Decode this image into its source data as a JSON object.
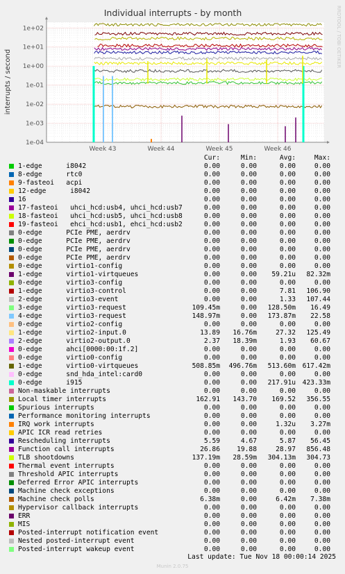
{
  "chart_data": {
    "type": "line",
    "title": "Individual interrupts - by month",
    "ylabel": "interrupts / second",
    "yscale": "log",
    "ylim": [
      0.0001,
      200
    ],
    "yticks": [
      "1e+02",
      "1e+01",
      "1e+00",
      "1e-01",
      "1e-02",
      "1e-03",
      "1e-04"
    ],
    "xticks": [
      "Week 43",
      "Week 44",
      "Week 45",
      "Week 46"
    ],
    "watermark": "RRDTOOL / TOBI OETIKER",
    "series_lines": [
      {
        "color": "#8b8b00",
        "level": 150,
        "start": 0.04
      },
      {
        "color": "#7b0000",
        "level": 50,
        "start": 0.15
      },
      {
        "color": "#b3b300",
        "level": 28,
        "start": 0.14
      },
      {
        "color": "#b40000",
        "level": 12,
        "start": 0.55
      },
      {
        "color": "#8b008b",
        "level": 8,
        "start": 0.07
      },
      {
        "color": "#1a1aa0",
        "level": 5.2,
        "start": 0.07
      },
      {
        "color": "#aaaaaa",
        "level": 2.5,
        "start": 0.07
      },
      {
        "color": "#e8e800",
        "level": 1.4,
        "start": 0.07
      },
      {
        "color": "#555555",
        "level": 0.55,
        "start": 0.07
      },
      {
        "color": "#30c030",
        "level": 0.13,
        "start": 0.07
      },
      {
        "color": "#ccff33",
        "level": 0.2,
        "start": 0.07
      },
      {
        "color": "#8b5a00",
        "level": 0.0075,
        "start": 0.07
      }
    ],
    "legend_headers": [
      "Cur:",
      "Min:",
      "Avg:",
      "Max:"
    ],
    "legend": [
      {
        "name": "1-edge      i8042",
        "color": "#00cc00",
        "cur": "0.00",
        "min": "0.00",
        "avg": "0.00",
        "max": "0.00"
      },
      {
        "name": "8-edge      rtc0",
        "color": "#0066b3",
        "cur": "0.00",
        "min": "0.00",
        "avg": "0.00",
        "max": "0.00"
      },
      {
        "name": "9-fasteoi   acpi",
        "color": "#ff8000",
        "cur": "0.00",
        "min": "0.00",
        "avg": "0.00",
        "max": "0.00"
      },
      {
        "name": "12-edge      i8042",
        "color": "#ffcc00",
        "cur": "0.00",
        "min": "0.00",
        "avg": "0.00",
        "max": "0.00"
      },
      {
        "name": "16",
        "color": "#330099",
        "cur": "0.00",
        "min": "0.00",
        "avg": "0.00",
        "max": "0.00"
      },
      {
        "name": "17-fasteoi   uhci_hcd:usb4, uhci_hcd:usb7",
        "color": "#990099",
        "cur": "0.00",
        "min": "0.00",
        "avg": "0.00",
        "max": "0.00"
      },
      {
        "name": "18-fasteoi   uhci_hcd:usb5, uhci_hcd:usb8",
        "color": "#ccff00",
        "cur": "0.00",
        "min": "0.00",
        "avg": "0.00",
        "max": "0.00"
      },
      {
        "name": "19-fasteoi   ehci_hcd:usb1, ehci_hcd:usb2",
        "color": "#ff0000",
        "cur": "0.00",
        "min": "0.00",
        "avg": "0.00",
        "max": "0.00"
      },
      {
        "name": "0-edge      PCIe PME, aerdrv",
        "color": "#808080",
        "cur": "0.00",
        "min": "0.00",
        "avg": "0.00",
        "max": "0.00"
      },
      {
        "name": "0-edge      PCIe PME, aerdrv",
        "color": "#008f00",
        "cur": "0.00",
        "min": "0.00",
        "avg": "0.00",
        "max": "0.00"
      },
      {
        "name": "0-edge      PCIe PME, aerdrv",
        "color": "#00487d",
        "cur": "0.00",
        "min": "0.00",
        "avg": "0.00",
        "max": "0.00"
      },
      {
        "name": "0-edge      PCIe PME, aerdrv",
        "color": "#b35a00",
        "cur": "0.00",
        "min": "0.00",
        "avg": "0.00",
        "max": "0.00"
      },
      {
        "name": "0-edge      virtio1-config",
        "color": "#b38f00",
        "cur": "0.00",
        "min": "0.00",
        "avg": "0.00",
        "max": "0.00"
      },
      {
        "name": "1-edge      virtio1-virtqueues",
        "color": "#6b006b",
        "cur": "0.00",
        "min": "0.00",
        "avg": "59.21u",
        "max": "82.32m"
      },
      {
        "name": "0-edge      virtio3-config",
        "color": "#8fb300",
        "cur": "0.00",
        "min": "0.00",
        "avg": "0.00",
        "max": "0.00"
      },
      {
        "name": "1-edge      virtio3-control",
        "color": "#b30000",
        "cur": "0.00",
        "min": "0.00",
        "avg": "7.81",
        "max": "106.90"
      },
      {
        "name": "2-edge      virtio3-event",
        "color": "#bebebe",
        "cur": "0.00",
        "min": "0.00",
        "avg": "1.33",
        "max": "107.44"
      },
      {
        "name": "3-edge      virtio3-request",
        "color": "#80ff80",
        "cur": "109.45m",
        "min": "0.00",
        "avg": "128.50m",
        "max": "16.49"
      },
      {
        "name": "4-edge      virtio3-request",
        "color": "#80c9ff",
        "cur": "148.97m",
        "min": "0.00",
        "avg": "173.87m",
        "max": "22.58"
      },
      {
        "name": "0-edge      virtio2-config",
        "color": "#ffc080",
        "cur": "0.00",
        "min": "0.00",
        "avg": "0.00",
        "max": "0.00"
      },
      {
        "name": "1-edge      virtio2-input.0",
        "color": "#ffe680",
        "cur": "13.89",
        "min": "16.76m",
        "avg": "27.32",
        "max": "125.49"
      },
      {
        "name": "2-edge      virtio2-output.0",
        "color": "#aa80ff",
        "cur": "2.37",
        "min": "18.39m",
        "avg": "1.93",
        "max": "60.67"
      },
      {
        "name": "0-edge      ahci[0000:00:1f.2]",
        "color": "#ee00cc",
        "cur": "0.00",
        "min": "0.00",
        "avg": "0.00",
        "max": "0.00"
      },
      {
        "name": "0-edge      virtio0-config",
        "color": "#ff8080",
        "cur": "0.00",
        "min": "0.00",
        "avg": "0.00",
        "max": "0.00"
      },
      {
        "name": "1-edge      virtio0-virtqueues",
        "color": "#666600",
        "cur": "508.85m",
        "min": "496.76m",
        "avg": "513.60m",
        "max": "617.42m"
      },
      {
        "name": "0-edge      snd_hda_intel:card0",
        "color": "#ffbfff",
        "cur": "0.00",
        "min": "0.00",
        "avg": "0.00",
        "max": "0.00"
      },
      {
        "name": "0-edge      i915",
        "color": "#00ffcc",
        "cur": "0.00",
        "min": "0.00",
        "avg": "217.91u",
        "max": "423.33m"
      },
      {
        "name": "Non-maskable interrupts",
        "color": "#cc6699",
        "cur": "0.00",
        "min": "0.00",
        "avg": "0.00",
        "max": "0.00"
      },
      {
        "name": "Local timer interrupts",
        "color": "#999900",
        "cur": "162.91",
        "min": "143.70",
        "avg": "169.52",
        "max": "356.55"
      },
      {
        "name": "Spurious interrupts",
        "color": "#00cc00",
        "cur": "0.00",
        "min": "0.00",
        "avg": "0.00",
        "max": "0.00"
      },
      {
        "name": "Performance monitoring interrupts",
        "color": "#0066b3",
        "cur": "0.00",
        "min": "0.00",
        "avg": "0.00",
        "max": "0.00"
      },
      {
        "name": "IRQ work interrupts",
        "color": "#ff8000",
        "cur": "0.00",
        "min": "0.00",
        "avg": "1.32u",
        "max": "3.27m"
      },
      {
        "name": "APIC ICR read retries",
        "color": "#ffcc00",
        "cur": "0.00",
        "min": "0.00",
        "avg": "0.00",
        "max": "0.00"
      },
      {
        "name": "Rescheduling interrupts",
        "color": "#330099",
        "cur": "5.59",
        "min": "4.67",
        "avg": "5.87",
        "max": "56.45"
      },
      {
        "name": "Function call interrupts",
        "color": "#990099",
        "cur": "26.86",
        "min": "19.88",
        "avg": "28.97",
        "max": "856.48"
      },
      {
        "name": "TLB shootdowns",
        "color": "#ccff00",
        "cur": "137.19m",
        "min": "28.59m",
        "avg": "304.13m",
        "max": "304.73"
      },
      {
        "name": "Thermal event interrupts",
        "color": "#ff0000",
        "cur": "0.00",
        "min": "0.00",
        "avg": "0.00",
        "max": "0.00"
      },
      {
        "name": "Threshold APIC interrupts",
        "color": "#808080",
        "cur": "0.00",
        "min": "0.00",
        "avg": "0.00",
        "max": "0.00"
      },
      {
        "name": "Deferred Error APIC interrupts",
        "color": "#008f00",
        "cur": "0.00",
        "min": "0.00",
        "avg": "0.00",
        "max": "0.00"
      },
      {
        "name": "Machine check exceptions",
        "color": "#00487d",
        "cur": "0.00",
        "min": "0.00",
        "avg": "0.00",
        "max": "0.00"
      },
      {
        "name": "Machine check polls",
        "color": "#b35a00",
        "cur": "6.38m",
        "min": "0.00",
        "avg": "6.42m",
        "max": "7.38m"
      },
      {
        "name": "Hypervisor callback interrupts",
        "color": "#b38f00",
        "cur": "0.00",
        "min": "0.00",
        "avg": "0.00",
        "max": "0.00"
      },
      {
        "name": "ERR",
        "color": "#6b006b",
        "cur": "0.00",
        "min": "0.00",
        "avg": "0.00",
        "max": "0.00"
      },
      {
        "name": "MIS",
        "color": "#8fb300",
        "cur": "0.00",
        "min": "0.00",
        "avg": "0.00",
        "max": "0.00"
      },
      {
        "name": "Posted-interrupt notification event",
        "color": "#b30000",
        "cur": "0.00",
        "min": "0.00",
        "avg": "0.00",
        "max": "0.00"
      },
      {
        "name": "Nested posted-interrupt event",
        "color": "#bebebe",
        "cur": "0.00",
        "min": "0.00",
        "avg": "0.00",
        "max": "0.00"
      },
      {
        "name": "Posted-interrupt wakeup event",
        "color": "#80ff80",
        "cur": "0.00",
        "min": "0.00",
        "avg": "0.00",
        "max": "0.00"
      }
    ]
  },
  "footer": {
    "last_update": "Last update: Tue Nov 18 00:00:14 2025",
    "version": "Munin 2.0.75"
  }
}
